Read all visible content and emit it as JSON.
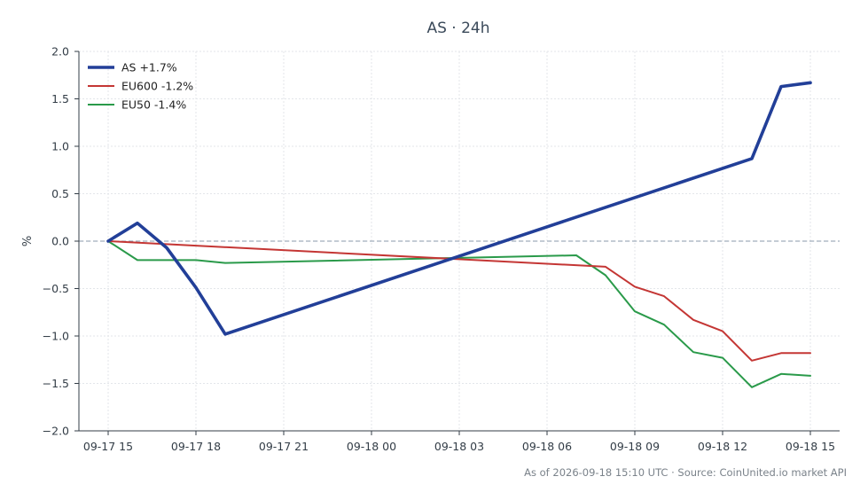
{
  "chart_data": {
    "type": "line",
    "title": "AS · 24h",
    "ylabel": "%",
    "xlabel": "",
    "ylim": [
      -2.0,
      2.0
    ],
    "yticks": [
      -2.0,
      -1.5,
      -1.0,
      -0.5,
      0.0,
      0.5,
      1.0,
      1.5,
      2.0
    ],
    "ytick_labels": [
      "−2.0",
      "−1.5",
      "−1.0",
      "−0.5",
      "0.0",
      "0.5",
      "1.0",
      "1.5",
      "2.0"
    ],
    "xlim": [
      "2026-09-17 14:00",
      "2026-09-18 16:00"
    ],
    "xticks": [
      "2026-09-17 15:00",
      "2026-09-17 18:00",
      "2026-09-17 21:00",
      "2026-09-18 00:00",
      "2026-09-18 03:00",
      "2026-09-18 06:00",
      "2026-09-18 09:00",
      "2026-09-18 12:00",
      "2026-09-18 15:00"
    ],
    "xtick_labels": [
      "09-17 15",
      "09-17 18",
      "09-17 21",
      "09-18 00",
      "09-18 03",
      "09-18 06",
      "09-18 09",
      "09-18 12",
      "09-18 15"
    ],
    "grid": true,
    "zero_line": true,
    "legend_position": "top-left",
    "series": [
      {
        "name": "AS +1.7%",
        "color": "#223f98",
        "x": [
          "2026-09-17 15:00",
          "2026-09-17 16:00",
          "2026-09-17 17:00",
          "2026-09-17 18:00",
          "2026-09-17 19:00",
          "2026-09-18 13:00",
          "2026-09-18 14:00",
          "2026-09-18 15:00"
        ],
        "y": [
          0.0,
          0.19,
          -0.07,
          -0.49,
          -0.98,
          0.87,
          1.63,
          1.67
        ]
      },
      {
        "name": "EU600 -1.2%",
        "color": "#c43634",
        "x": [
          "2026-09-17 15:00",
          "2026-09-18 08:00",
          "2026-09-18 09:00",
          "2026-09-18 10:00",
          "2026-09-18 11:00",
          "2026-09-18 12:00",
          "2026-09-18 13:00",
          "2026-09-18 14:00",
          "2026-09-18 15:00"
        ],
        "y": [
          0.0,
          -0.27,
          -0.48,
          -0.58,
          -0.83,
          -0.95,
          -1.26,
          -1.18,
          -1.18
        ]
      },
      {
        "name": "EU50 -1.4%",
        "color": "#2a9a4a",
        "x": [
          "2026-09-17 15:00",
          "2026-09-17 16:00",
          "2026-09-17 17:00",
          "2026-09-17 18:00",
          "2026-09-17 19:00",
          "2026-09-18 07:00",
          "2026-09-18 08:00",
          "2026-09-18 09:00",
          "2026-09-18 10:00",
          "2026-09-18 11:00",
          "2026-09-18 12:00",
          "2026-09-18 13:00",
          "2026-09-18 14:00",
          "2026-09-18 15:00"
        ],
        "y": [
          0.0,
          -0.2,
          -0.2,
          -0.2,
          -0.23,
          -0.15,
          -0.36,
          -0.74,
          -0.88,
          -1.17,
          -1.23,
          -1.54,
          -1.4,
          -1.42
        ]
      }
    ]
  },
  "footer": "As of 2026-09-18 15:10 UTC · Source: CoinUnited.io market API"
}
